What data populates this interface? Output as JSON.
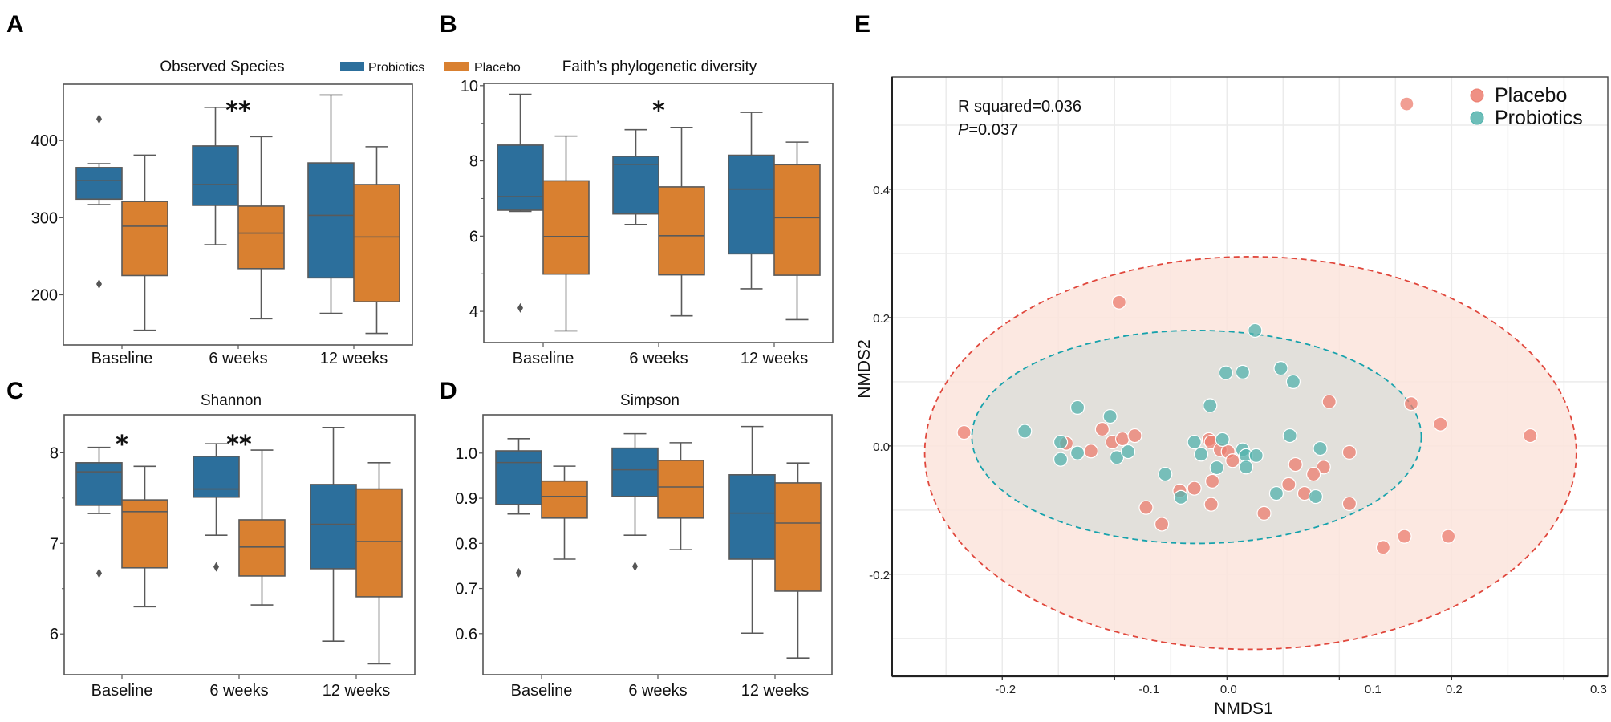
{
  "colors": {
    "probiotics_box": "#2c6f9c",
    "placebo_box": "#d98030",
    "box_edge": "#5a5a5a",
    "placebo_point": "#ec7d6f",
    "probiotics_point": "#53b3ad",
    "placebo_ellipse_fill": "#fbe4dc",
    "placebo_ellipse_stroke": "#e0473c",
    "probiotics_ellipse_fill": "#dfdfda",
    "probiotics_ellipse_stroke": "#16a2ac",
    "grid": "#ebebeb"
  },
  "legend_box": {
    "items": [
      {
        "name": "Probiotics",
        "color_key": "probiotics_box"
      },
      {
        "name": "Placebo",
        "color_key": "placebo_box"
      }
    ]
  },
  "chart_data": [
    {
      "panel": "A",
      "type": "box",
      "title": "Observed Species",
      "categories": [
        "Baseline",
        "6 weeks",
        "12 weeks"
      ],
      "ylim": [
        135,
        473
      ],
      "yticks": [
        200,
        300,
        400
      ],
      "ytick_labels": [
        "200",
        "300",
        "400"
      ],
      "minor_yticks": [],
      "significance": [
        "",
        "**",
        ""
      ],
      "series": [
        {
          "name": "Probiotics",
          "boxes": [
            {
              "whislo": 317,
              "q1": 324,
              "med": 348,
              "q3": 365,
              "whishi": 370,
              "fliers": [
                428,
                214
              ]
            },
            {
              "whislo": 265,
              "q1": 316,
              "med": 343,
              "q3": 393,
              "whishi": 443,
              "fliers": []
            },
            {
              "whislo": 176,
              "q1": 222,
              "med": 303,
              "q3": 371,
              "whishi": 459,
              "fliers": []
            }
          ]
        },
        {
          "name": "Placebo",
          "boxes": [
            {
              "whislo": 154,
              "q1": 225,
              "med": 289,
              "q3": 321,
              "whishi": 381,
              "fliers": []
            },
            {
              "whislo": 169,
              "q1": 234,
              "med": 280,
              "q3": 315,
              "whishi": 405,
              "fliers": []
            },
            {
              "whislo": 150,
              "q1": 191,
              "med": 275,
              "q3": 343,
              "whishi": 392,
              "fliers": []
            }
          ]
        }
      ]
    },
    {
      "panel": "B",
      "type": "box",
      "title": "Faith’s phylogenetic diversity",
      "categories": [
        "Baseline",
        "6 weeks",
        "12 weeks"
      ],
      "ylim": [
        3.17,
        10.06
      ],
      "yticks": [
        4,
        6,
        8,
        10
      ],
      "ytick_labels": [
        "4",
        "6",
        "8",
        "10"
      ],
      "minor_yticks": [
        5,
        7,
        9
      ],
      "significance": [
        "",
        "*",
        ""
      ],
      "series": [
        {
          "name": "Probiotics",
          "boxes": [
            {
              "whislo": 6.66,
              "q1": 6.69,
              "med": 7.05,
              "q3": 8.42,
              "whishi": 9.77,
              "fliers": [
                4.09
              ]
            },
            {
              "whislo": 6.31,
              "q1": 6.59,
              "med": 7.91,
              "q3": 8.12,
              "whishi": 8.83,
              "fliers": []
            },
            {
              "whislo": 4.6,
              "q1": 5.53,
              "med": 7.25,
              "q3": 8.15,
              "whishi": 9.29,
              "fliers": []
            }
          ]
        },
        {
          "name": "Placebo",
          "boxes": [
            {
              "whislo": 3.48,
              "q1": 4.99,
              "med": 5.99,
              "q3": 7.47,
              "whishi": 8.66,
              "fliers": []
            },
            {
              "whislo": 3.88,
              "q1": 4.97,
              "med": 6.01,
              "q3": 7.31,
              "whishi": 8.89,
              "fliers": []
            },
            {
              "whislo": 3.78,
              "q1": 4.96,
              "med": 6.49,
              "q3": 7.9,
              "whishi": 8.5,
              "fliers": []
            }
          ]
        }
      ]
    },
    {
      "panel": "C",
      "type": "box",
      "title": "Shannon",
      "categories": [
        "Baseline",
        "6 weeks",
        "12 weeks"
      ],
      "ylim": [
        5.55,
        8.42
      ],
      "yticks": [
        6,
        7,
        8
      ],
      "ytick_labels": [
        "6",
        "7",
        "8"
      ],
      "minor_yticks": [
        6.5,
        7.5
      ],
      "significance": [
        "*",
        "**",
        ""
      ],
      "series": [
        {
          "name": "Probiotics",
          "boxes": [
            {
              "whislo": 7.33,
              "q1": 7.42,
              "med": 7.79,
              "q3": 7.89,
              "whishi": 8.06,
              "fliers": [
                6.67
              ]
            },
            {
              "whislo": 7.09,
              "q1": 7.51,
              "med": 7.6,
              "q3": 7.96,
              "whishi": 8.1,
              "fliers": [
                6.74
              ]
            },
            {
              "whislo": 5.92,
              "q1": 6.72,
              "med": 7.21,
              "q3": 7.65,
              "whishi": 8.28,
              "fliers": []
            }
          ]
        },
        {
          "name": "Placebo",
          "boxes": [
            {
              "whislo": 6.3,
              "q1": 6.73,
              "med": 7.35,
              "q3": 7.48,
              "whishi": 7.85,
              "fliers": []
            },
            {
              "whislo": 6.32,
              "q1": 6.64,
              "med": 6.96,
              "q3": 7.26,
              "whishi": 8.03,
              "fliers": []
            },
            {
              "whislo": 5.67,
              "q1": 6.41,
              "med": 7.02,
              "q3": 7.6,
              "whishi": 7.89,
              "fliers": []
            }
          ]
        }
      ]
    },
    {
      "panel": "D",
      "type": "box",
      "title": "Simpson",
      "categories": [
        "Baseline",
        "6 weeks",
        "12 weeks"
      ],
      "ylim": [
        0.509,
        1.085
      ],
      "yticks": [
        0.6,
        0.7,
        0.8,
        0.9,
        1.0
      ],
      "ytick_labels": [
        "0.6",
        "0.7",
        "0.8",
        "0.9",
        "1.0"
      ],
      "minor_yticks": [],
      "significance": [
        "",
        "",
        ""
      ],
      "series": [
        {
          "name": "Probiotics",
          "boxes": [
            {
              "whislo": 0.865,
              "q1": 0.886,
              "med": 0.979,
              "q3": 1.005,
              "whishi": 1.032,
              "fliers": [
                0.735
              ]
            },
            {
              "whislo": 0.818,
              "q1": 0.904,
              "med": 0.963,
              "q3": 1.011,
              "whishi": 1.043,
              "fliers": [
                0.749
              ]
            },
            {
              "whislo": 0.601,
              "q1": 0.765,
              "med": 0.867,
              "q3": 0.952,
              "whishi": 1.059,
              "fliers": []
            }
          ]
        },
        {
          "name": "Placebo",
          "boxes": [
            {
              "whislo": 0.765,
              "q1": 0.856,
              "med": 0.904,
              "q3": 0.938,
              "whishi": 0.971,
              "fliers": []
            },
            {
              "whislo": 0.786,
              "q1": 0.856,
              "med": 0.925,
              "q3": 0.984,
              "whishi": 1.023,
              "fliers": []
            },
            {
              "whislo": 0.546,
              "q1": 0.694,
              "med": 0.845,
              "q3": 0.934,
              "whishi": 0.978,
              "fliers": []
            }
          ]
        }
      ]
    },
    {
      "panel": "E",
      "type": "scatter",
      "title": "",
      "xlabel": "NMDS1",
      "ylabel": "NMDS2",
      "xlim": [
        -0.298,
        0.339
      ],
      "ylim": [
        -0.359,
        0.575
      ],
      "xticks": [
        -0.2,
        -0.1,
        0.0,
        0.1,
        0.2,
        0.3
      ],
      "xtick_labels": [
        "-0.2",
        "-0.1",
        "0.0",
        "0.1",
        "0.2",
        "0.3"
      ],
      "yticks": [
        -0.2,
        0.0,
        0.2,
        0.4
      ],
      "ytick_labels": [
        "-0.2",
        "0.0",
        "0.2",
        "0.4"
      ],
      "x_grid_step": 0.05,
      "y_grid_step": 0.1,
      "grid": true,
      "legend_position": "top-right",
      "annotations": {
        "r_squared": "R squared=0.036",
        "p_label": "P",
        "p_value": "=0.037"
      },
      "ellipses": [
        {
          "group": "Placebo",
          "cx": 0.021,
          "cy": -0.011,
          "rx": 0.29,
          "ry": 0.306
        },
        {
          "group": "Probiotics",
          "cx": -0.027,
          "cy": 0.014,
          "rx": 0.2,
          "ry": 0.166
        }
      ],
      "series": [
        {
          "name": "Placebo",
          "points": [
            [
              0.16,
              0.533
            ],
            [
              -0.096,
              0.224
            ],
            [
              -0.234,
              0.021
            ],
            [
              0.27,
              0.016
            ],
            [
              0.19,
              0.034
            ],
            [
              0.164,
              0.066
            ],
            [
              0.091,
              0.069
            ],
            [
              0.139,
              -0.158
            ],
            [
              0.158,
              -0.141
            ],
            [
              0.197,
              -0.141
            ],
            [
              -0.143,
              0.004
            ],
            [
              -0.121,
              -0.008
            ],
            [
              -0.111,
              0.026
            ],
            [
              -0.102,
              0.006
            ],
            [
              -0.093,
              0.011
            ],
            [
              -0.082,
              0.016
            ],
            [
              -0.042,
              -0.07
            ],
            [
              -0.072,
              -0.096
            ],
            [
              -0.058,
              -0.122
            ],
            [
              -0.016,
              0.01
            ],
            [
              -0.014,
              0.006
            ],
            [
              -0.006,
              -0.006
            ],
            [
              0.001,
              -0.009
            ],
            [
              0.005,
              -0.023
            ],
            [
              0.109,
              -0.01
            ],
            [
              0.061,
              -0.029
            ],
            [
              0.086,
              -0.033
            ],
            [
              0.077,
              -0.044
            ],
            [
              -0.013,
              -0.055
            ],
            [
              0.055,
              -0.06
            ],
            [
              -0.029,
              -0.066
            ],
            [
              0.069,
              -0.074
            ],
            [
              -0.014,
              -0.091
            ],
            [
              0.109,
              -0.09
            ],
            [
              0.033,
              -0.105
            ]
          ]
        },
        {
          "name": "Probiotics",
          "points": [
            [
              -0.18,
              0.023
            ],
            [
              -0.133,
              -0.011
            ],
            [
              -0.148,
              0.006
            ],
            [
              -0.148,
              -0.021
            ],
            [
              -0.133,
              0.06
            ],
            [
              -0.104,
              0.046
            ],
            [
              -0.098,
              -0.018
            ],
            [
              -0.088,
              -0.009
            ],
            [
              -0.055,
              -0.044
            ],
            [
              -0.041,
              -0.08
            ],
            [
              0.025,
              0.18
            ],
            [
              -0.001,
              0.114
            ],
            [
              0.014,
              0.115
            ],
            [
              0.048,
              0.121
            ],
            [
              0.059,
              0.1
            ],
            [
              -0.015,
              0.063
            ],
            [
              0.056,
              0.016
            ],
            [
              -0.029,
              0.006
            ],
            [
              -0.004,
              0.01
            ],
            [
              -0.023,
              -0.013
            ],
            [
              0.014,
              -0.006
            ],
            [
              0.017,
              -0.015
            ],
            [
              0.026,
              -0.015
            ],
            [
              0.017,
              -0.033
            ],
            [
              -0.009,
              -0.034
            ],
            [
              0.083,
              -0.004
            ],
            [
              0.044,
              -0.074
            ],
            [
              0.079,
              -0.079
            ]
          ]
        }
      ]
    }
  ]
}
